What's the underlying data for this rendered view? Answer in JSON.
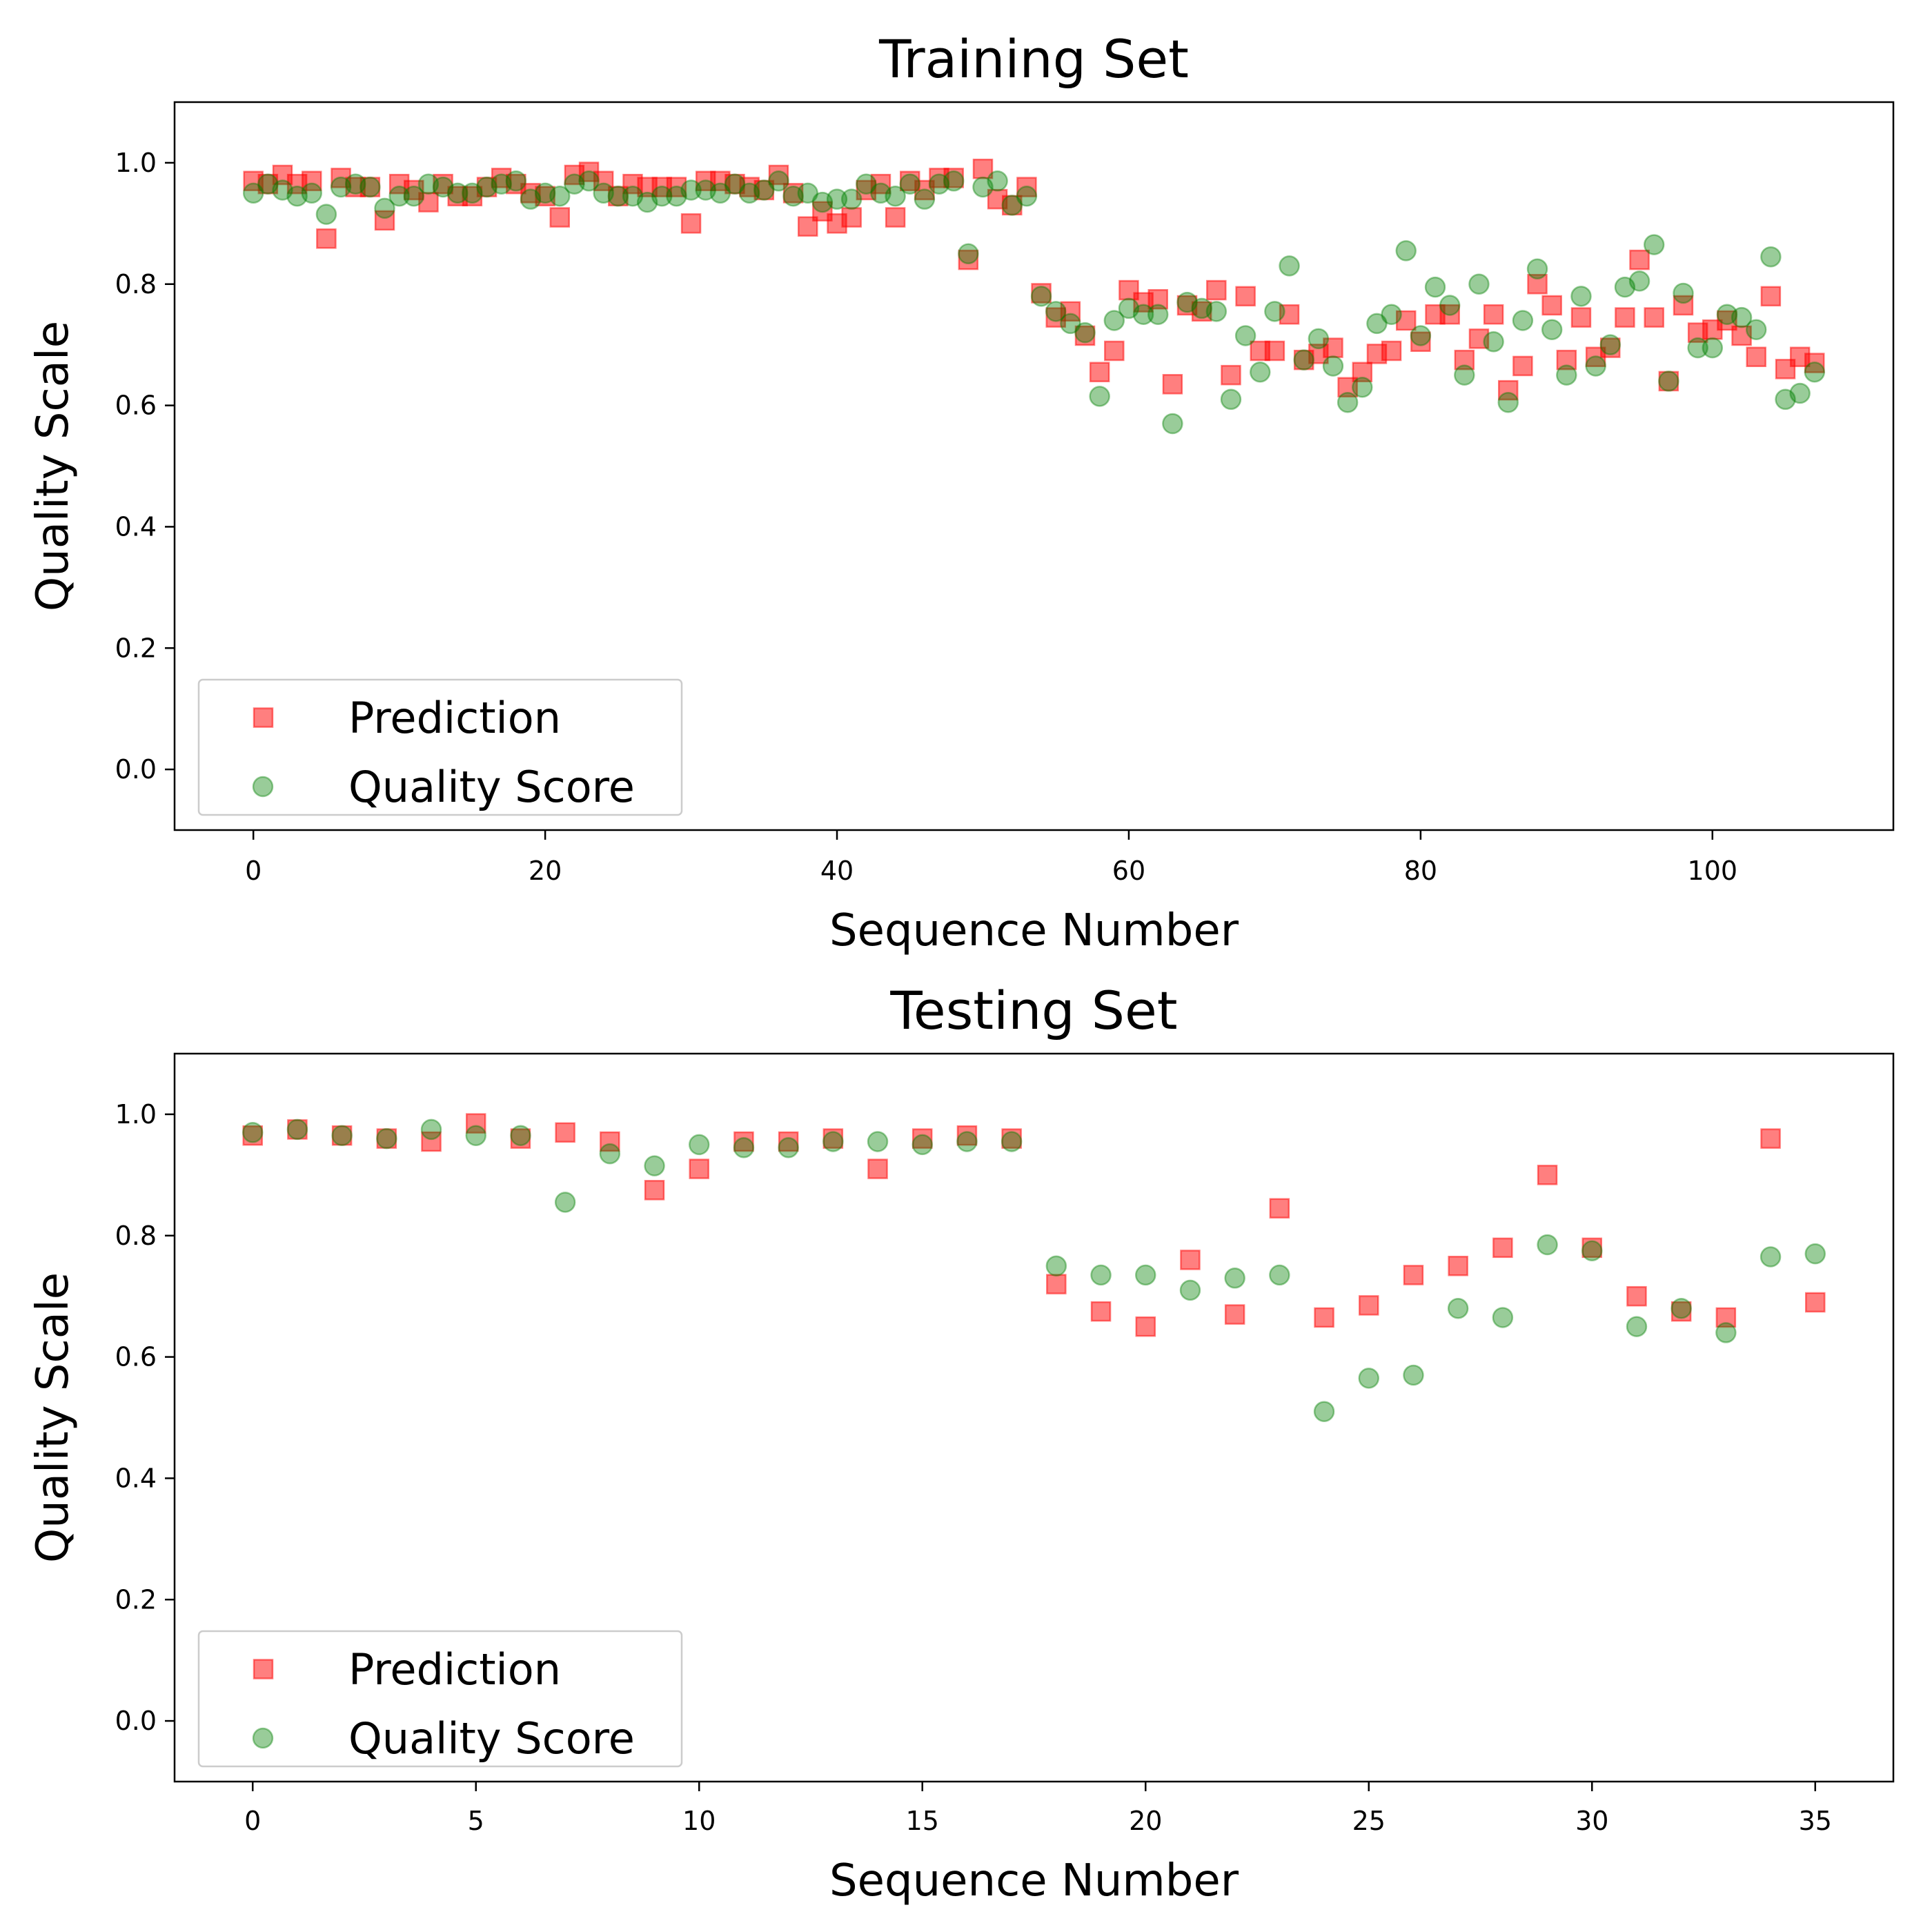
{
  "colors": {
    "prediction": "#ff0000",
    "quality_score": "#008000",
    "axes": "#000000",
    "background": "#ffffff"
  },
  "chart_data": [
    {
      "type": "scatter",
      "title": "Training Set",
      "xlabel": "Sequence Number",
      "ylabel": "Quality Scale",
      "xlim": [
        -5.4,
        112.4
      ],
      "ylim": [
        -0.1,
        1.1
      ],
      "x_ticks": [
        0,
        20,
        40,
        60,
        80,
        100
      ],
      "y_ticks": [
        0.0,
        0.2,
        0.4,
        0.6,
        0.8,
        1.0
      ],
      "x_tick_labels": [
        "0",
        "20",
        "40",
        "60",
        "80",
        "100"
      ],
      "y_tick_labels": [
        "0.0",
        "0.2",
        "0.4",
        "0.6",
        "0.8",
        "1.0"
      ],
      "legend_position": "lower left",
      "grid": false,
      "series": [
        {
          "name": "Prediction",
          "marker": "square",
          "values": [
            0.97,
            0.965,
            0.98,
            0.965,
            0.97,
            0.875,
            0.975,
            0.96,
            0.96,
            0.905,
            0.965,
            0.955,
            0.935,
            0.965,
            0.945,
            0.945,
            0.96,
            0.975,
            0.965,
            0.95,
            0.945,
            0.91,
            0.98,
            0.985,
            0.97,
            0.945,
            0.965,
            0.96,
            0.96,
            0.96,
            0.9,
            0.97,
            0.97,
            0.965,
            0.96,
            0.955,
            0.98,
            0.95,
            0.895,
            0.92,
            0.9,
            0.91,
            0.955,
            0.965,
            0.91,
            0.97,
            0.955,
            0.975,
            0.975,
            0.84,
            0.99,
            0.94,
            0.93,
            0.96,
            0.785,
            0.745,
            0.755,
            0.715,
            0.655,
            0.69,
            0.79,
            0.77,
            0.775,
            0.635,
            0.765,
            0.755,
            0.79,
            0.65,
            0.78,
            0.69,
            0.69,
            0.75,
            0.675,
            0.685,
            0.695,
            0.63,
            0.655,
            0.685,
            0.69,
            0.74,
            0.705,
            0.75,
            0.75,
            0.675,
            0.71,
            0.75,
            0.625,
            0.665,
            0.8,
            0.765,
            0.675,
            0.745,
            0.68,
            0.695,
            0.745,
            0.84,
            0.745,
            0.64,
            0.765,
            0.72,
            0.725,
            0.74,
            0.715,
            0.68,
            0.78,
            0.66,
            0.68,
            0.67
          ]
        },
        {
          "name": "Quality Score",
          "marker": "circle",
          "values": [
            0.95,
            0.965,
            0.955,
            0.945,
            0.95,
            0.915,
            0.96,
            0.965,
            0.96,
            0.925,
            0.945,
            0.945,
            0.965,
            0.96,
            0.95,
            0.95,
            0.96,
            0.965,
            0.97,
            0.94,
            0.95,
            0.945,
            0.965,
            0.97,
            0.95,
            0.945,
            0.945,
            0.935,
            0.945,
            0.945,
            0.955,
            0.955,
            0.95,
            0.965,
            0.95,
            0.955,
            0.97,
            0.945,
            0.95,
            0.935,
            0.94,
            0.94,
            0.965,
            0.95,
            0.945,
            0.965,
            0.94,
            0.965,
            0.97,
            0.85,
            0.96,
            0.97,
            0.93,
            0.945,
            0.78,
            0.755,
            0.735,
            0.72,
            0.615,
            0.74,
            0.76,
            0.75,
            0.75,
            0.57,
            0.77,
            0.76,
            0.755,
            0.61,
            0.715,
            0.655,
            0.755,
            0.83,
            0.675,
            0.71,
            0.665,
            0.605,
            0.63,
            0.735,
            0.75,
            0.855,
            0.715,
            0.795,
            0.765,
            0.65,
            0.8,
            0.705,
            0.605,
            0.74,
            0.825,
            0.725,
            0.65,
            0.78,
            0.665,
            0.7,
            0.795,
            0.805,
            0.865,
            0.64,
            0.785,
            0.695,
            0.695,
            0.75,
            0.745,
            0.725,
            0.845,
            0.61,
            0.62,
            0.655
          ]
        }
      ]
    },
    {
      "type": "scatter",
      "title": "Testing Set",
      "xlabel": "Sequence Number",
      "ylabel": "Quality Scale",
      "xlim": [
        -1.75,
        36.75
      ],
      "ylim": [
        -0.1,
        1.1
      ],
      "x_ticks": [
        0,
        5,
        10,
        15,
        20,
        25,
        30,
        35
      ],
      "y_ticks": [
        0.0,
        0.2,
        0.4,
        0.6,
        0.8,
        1.0
      ],
      "x_tick_labels": [
        "0",
        "5",
        "10",
        "15",
        "20",
        "25",
        "30",
        "35"
      ],
      "y_tick_labels": [
        "0.0",
        "0.2",
        "0.4",
        "0.6",
        "0.8",
        "1.0"
      ],
      "legend_position": "lower left",
      "grid": false,
      "series": [
        {
          "name": "Prediction",
          "marker": "square",
          "values": [
            0.965,
            0.975,
            0.965,
            0.96,
            0.955,
            0.985,
            0.96,
            0.97,
            0.955,
            0.875,
            0.91,
            0.955,
            0.955,
            0.96,
            0.91,
            0.96,
            0.965,
            0.96,
            0.72,
            0.675,
            0.65,
            0.76,
            0.67,
            0.845,
            0.665,
            0.685,
            0.735,
            0.75,
            0.78,
            0.9,
            0.78,
            0.7,
            0.675,
            0.665,
            0.96,
            0.69
          ]
        },
        {
          "name": "Quality Score",
          "marker": "circle",
          "values": [
            0.97,
            0.975,
            0.965,
            0.96,
            0.975,
            0.965,
            0.965,
            0.855,
            0.935,
            0.915,
            0.95,
            0.945,
            0.945,
            0.955,
            0.955,
            0.95,
            0.955,
            0.955,
            0.75,
            0.735,
            0.735,
            0.71,
            0.73,
            0.735,
            0.51,
            0.565,
            0.57,
            0.68,
            0.665,
            0.785,
            0.775,
            0.65,
            0.68,
            0.64,
            0.765,
            0.77
          ]
        }
      ]
    }
  ]
}
